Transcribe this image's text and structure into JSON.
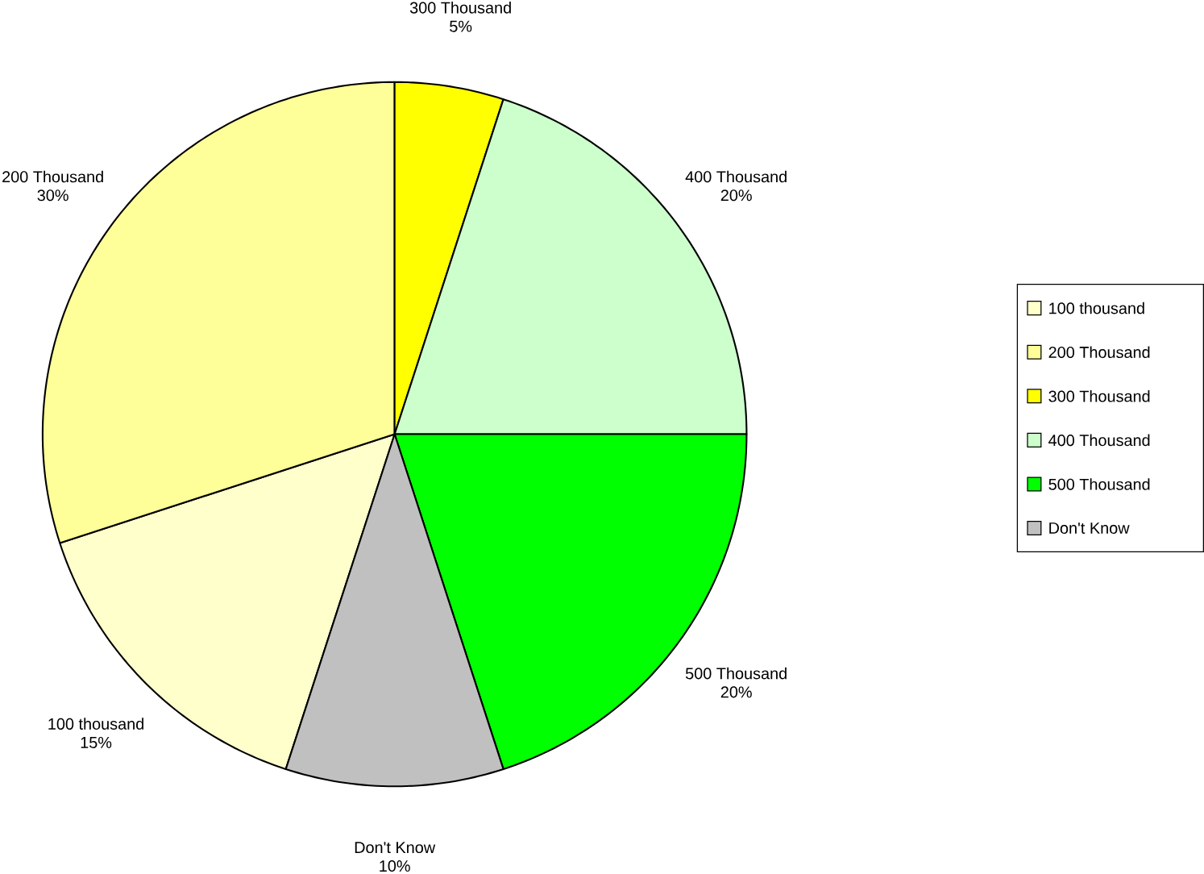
{
  "chart_data": {
    "type": "pie",
    "categories": [
      "100 thousand",
      "200 Thousand",
      "300 Thousand",
      "400 Thousand",
      "500 Thousand",
      "Don't Know"
    ],
    "values": [
      15,
      30,
      5,
      20,
      20,
      10
    ],
    "value_labels": [
      "15%",
      "30%",
      "5%",
      "20%",
      "20%",
      "10%"
    ],
    "colors": [
      "#ffffcc",
      "#ffff99",
      "#ffff00",
      "#ccffcc",
      "#00ff00",
      "#c0c0c0"
    ],
    "legend": "right"
  }
}
